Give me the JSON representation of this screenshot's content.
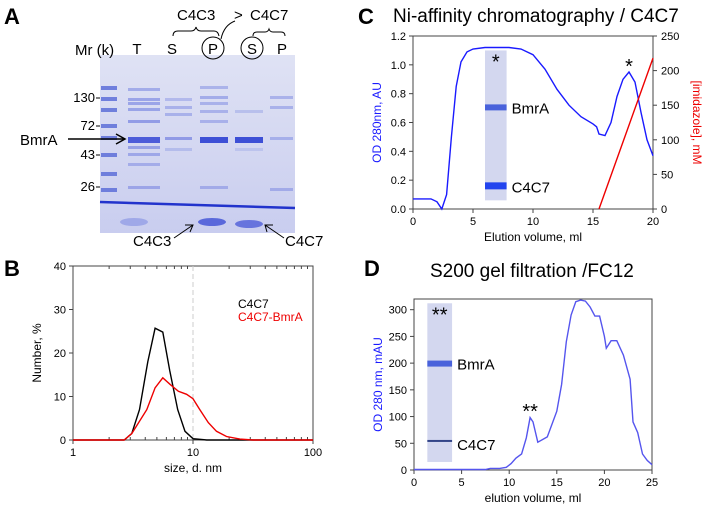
{
  "panels": {
    "A": {
      "letter": "A",
      "mr_label": "Mr (k)",
      "markers": [
        "130",
        "72",
        "43",
        "26"
      ],
      "lanes": [
        "T",
        "S",
        "P",
        "S",
        "P"
      ],
      "group1": "C4C3",
      "group2": "C4C7",
      "group_arrow": ">",
      "bmra_label": "BmrA",
      "c4c3_label": "C4C3",
      "c4c7_label": "C4C7"
    },
    "B": {
      "letter": "B"
    },
    "C": {
      "letter": "C",
      "inset_top": "BmrA",
      "inset_bottom": "C4C7",
      "star": "*"
    },
    "D": {
      "letter": "D",
      "inset_top": "BmrA",
      "inset_bottom": "C4C7",
      "star": "**"
    }
  },
  "chart_data": [
    {
      "id": "B",
      "type": "line",
      "title": "",
      "xlabel": "size, d. nm",
      "ylabel": "Number, %",
      "xscale": "log",
      "xlim": [
        1,
        100
      ],
      "ylim": [
        0,
        40
      ],
      "xticks": [
        "1",
        "10",
        "100"
      ],
      "yticks": [
        "0",
        "10",
        "20",
        "30",
        "40"
      ],
      "reference_line_x": 10,
      "legend_position": "top-right",
      "series": [
        {
          "name": "C4C7",
          "color": "#000000",
          "x": [
            1,
            2.67,
            3.09,
            3.58,
            4.2,
            4.83,
            5.6,
            6.4,
            7.46,
            8.58,
            10,
            13,
            100
          ],
          "y": [
            0,
            0,
            1.5,
            7,
            18,
            25.7,
            24.8,
            16,
            7,
            2,
            0.3,
            0,
            0
          ]
        },
        {
          "name": "C4C7-BmrA",
          "color": "#ee0000",
          "x": [
            1,
            2.67,
            3.09,
            4.12,
            4.83,
            5.6,
            6.43,
            7.56,
            8.85,
            10,
            11.4,
            13.4,
            15.7,
            19,
            24.6,
            31.7,
            100
          ],
          "y": [
            0,
            0,
            1.5,
            7,
            12,
            14.3,
            12.8,
            11.2,
            10.5,
            9.5,
            7,
            4,
            2,
            0.8,
            0.2,
            0,
            0
          ]
        }
      ]
    },
    {
      "id": "C",
      "type": "line",
      "title": "Ni-affinity chromatography / C4C7",
      "xlabel": "Elution volume, ml",
      "ylabel": "OD 280nm, AU",
      "y2label": "[imidazole], mM",
      "xlim": [
        0,
        20
      ],
      "ylim": [
        0,
        1.2
      ],
      "y2lim": [
        0,
        250
      ],
      "xticks": [
        "0",
        "5",
        "10",
        "15",
        "20"
      ],
      "yticks": [
        "0.0",
        "0.2",
        "0.4",
        "0.6",
        "0.8",
        "1.0",
        "1.2"
      ],
      "y2ticks": [
        "0",
        "50",
        "100",
        "150",
        "200",
        "250"
      ],
      "series": [
        {
          "name": "OD 280nm",
          "axis": "left",
          "color": "#1a1aff",
          "x": [
            0,
            1.5,
            2,
            2.4,
            2.8,
            3.2,
            3.6,
            4,
            4.5,
            5,
            6,
            8,
            9,
            10,
            11,
            12,
            13,
            14,
            15,
            15.3,
            15.5,
            16,
            16.5,
            17,
            17.5,
            18,
            18.5,
            19,
            19.5,
            20
          ],
          "y": [
            0.07,
            0.07,
            0.05,
            0,
            0.1,
            0.5,
            0.85,
            1.02,
            1.09,
            1.11,
            1.12,
            1.12,
            1.11,
            1.07,
            0.97,
            0.83,
            0.72,
            0.64,
            0.59,
            0.57,
            0.52,
            0.51,
            0.6,
            0.78,
            0.9,
            0.95,
            0.88,
            0.67,
            0.48,
            0.37
          ]
        },
        {
          "name": "imidazole",
          "axis": "right",
          "color": "#ee0000",
          "x": [
            15.5,
            20
          ],
          "y": [
            0,
            218
          ]
        }
      ],
      "annotations": [
        {
          "text": "*",
          "x": 18,
          "y": 1.0
        }
      ]
    },
    {
      "id": "D",
      "type": "line",
      "title": "S200 gel filtration /FC12",
      "xlabel": "elution volume, ml",
      "ylabel": "OD 280 nm, mAU",
      "xlim": [
        0,
        25
      ],
      "ylim": [
        0,
        320
      ],
      "xticks": [
        "0",
        "5",
        "10",
        "15",
        "20",
        "25"
      ],
      "yticks": [
        "0",
        "50",
        "100",
        "150",
        "200",
        "250",
        "300"
      ],
      "series": [
        {
          "name": "OD 280 nm",
          "color": "#5555ee",
          "x": [
            0,
            7.5,
            8,
            9,
            9.7,
            10.2,
            10.7,
            11.3,
            11.8,
            12.2,
            12.5,
            13,
            14,
            15,
            15.5,
            16,
            16.5,
            17,
            17.5,
            18,
            18.5,
            19,
            19.5,
            20,
            20.2,
            20.7,
            21.3,
            22,
            22.7,
            23,
            23.5,
            24,
            24.5,
            25
          ],
          "y": [
            1,
            1,
            3,
            3,
            5,
            12,
            22,
            30,
            60,
            98,
            90,
            52,
            62,
            110,
            160,
            240,
            290,
            315,
            318,
            316,
            305,
            288,
            288,
            250,
            228,
            242,
            242,
            215,
            170,
            90,
            70,
            30,
            18,
            10
          ]
        }
      ],
      "annotations": [
        {
          "text": "**",
          "x": 12.2,
          "y": 112
        }
      ]
    }
  ]
}
